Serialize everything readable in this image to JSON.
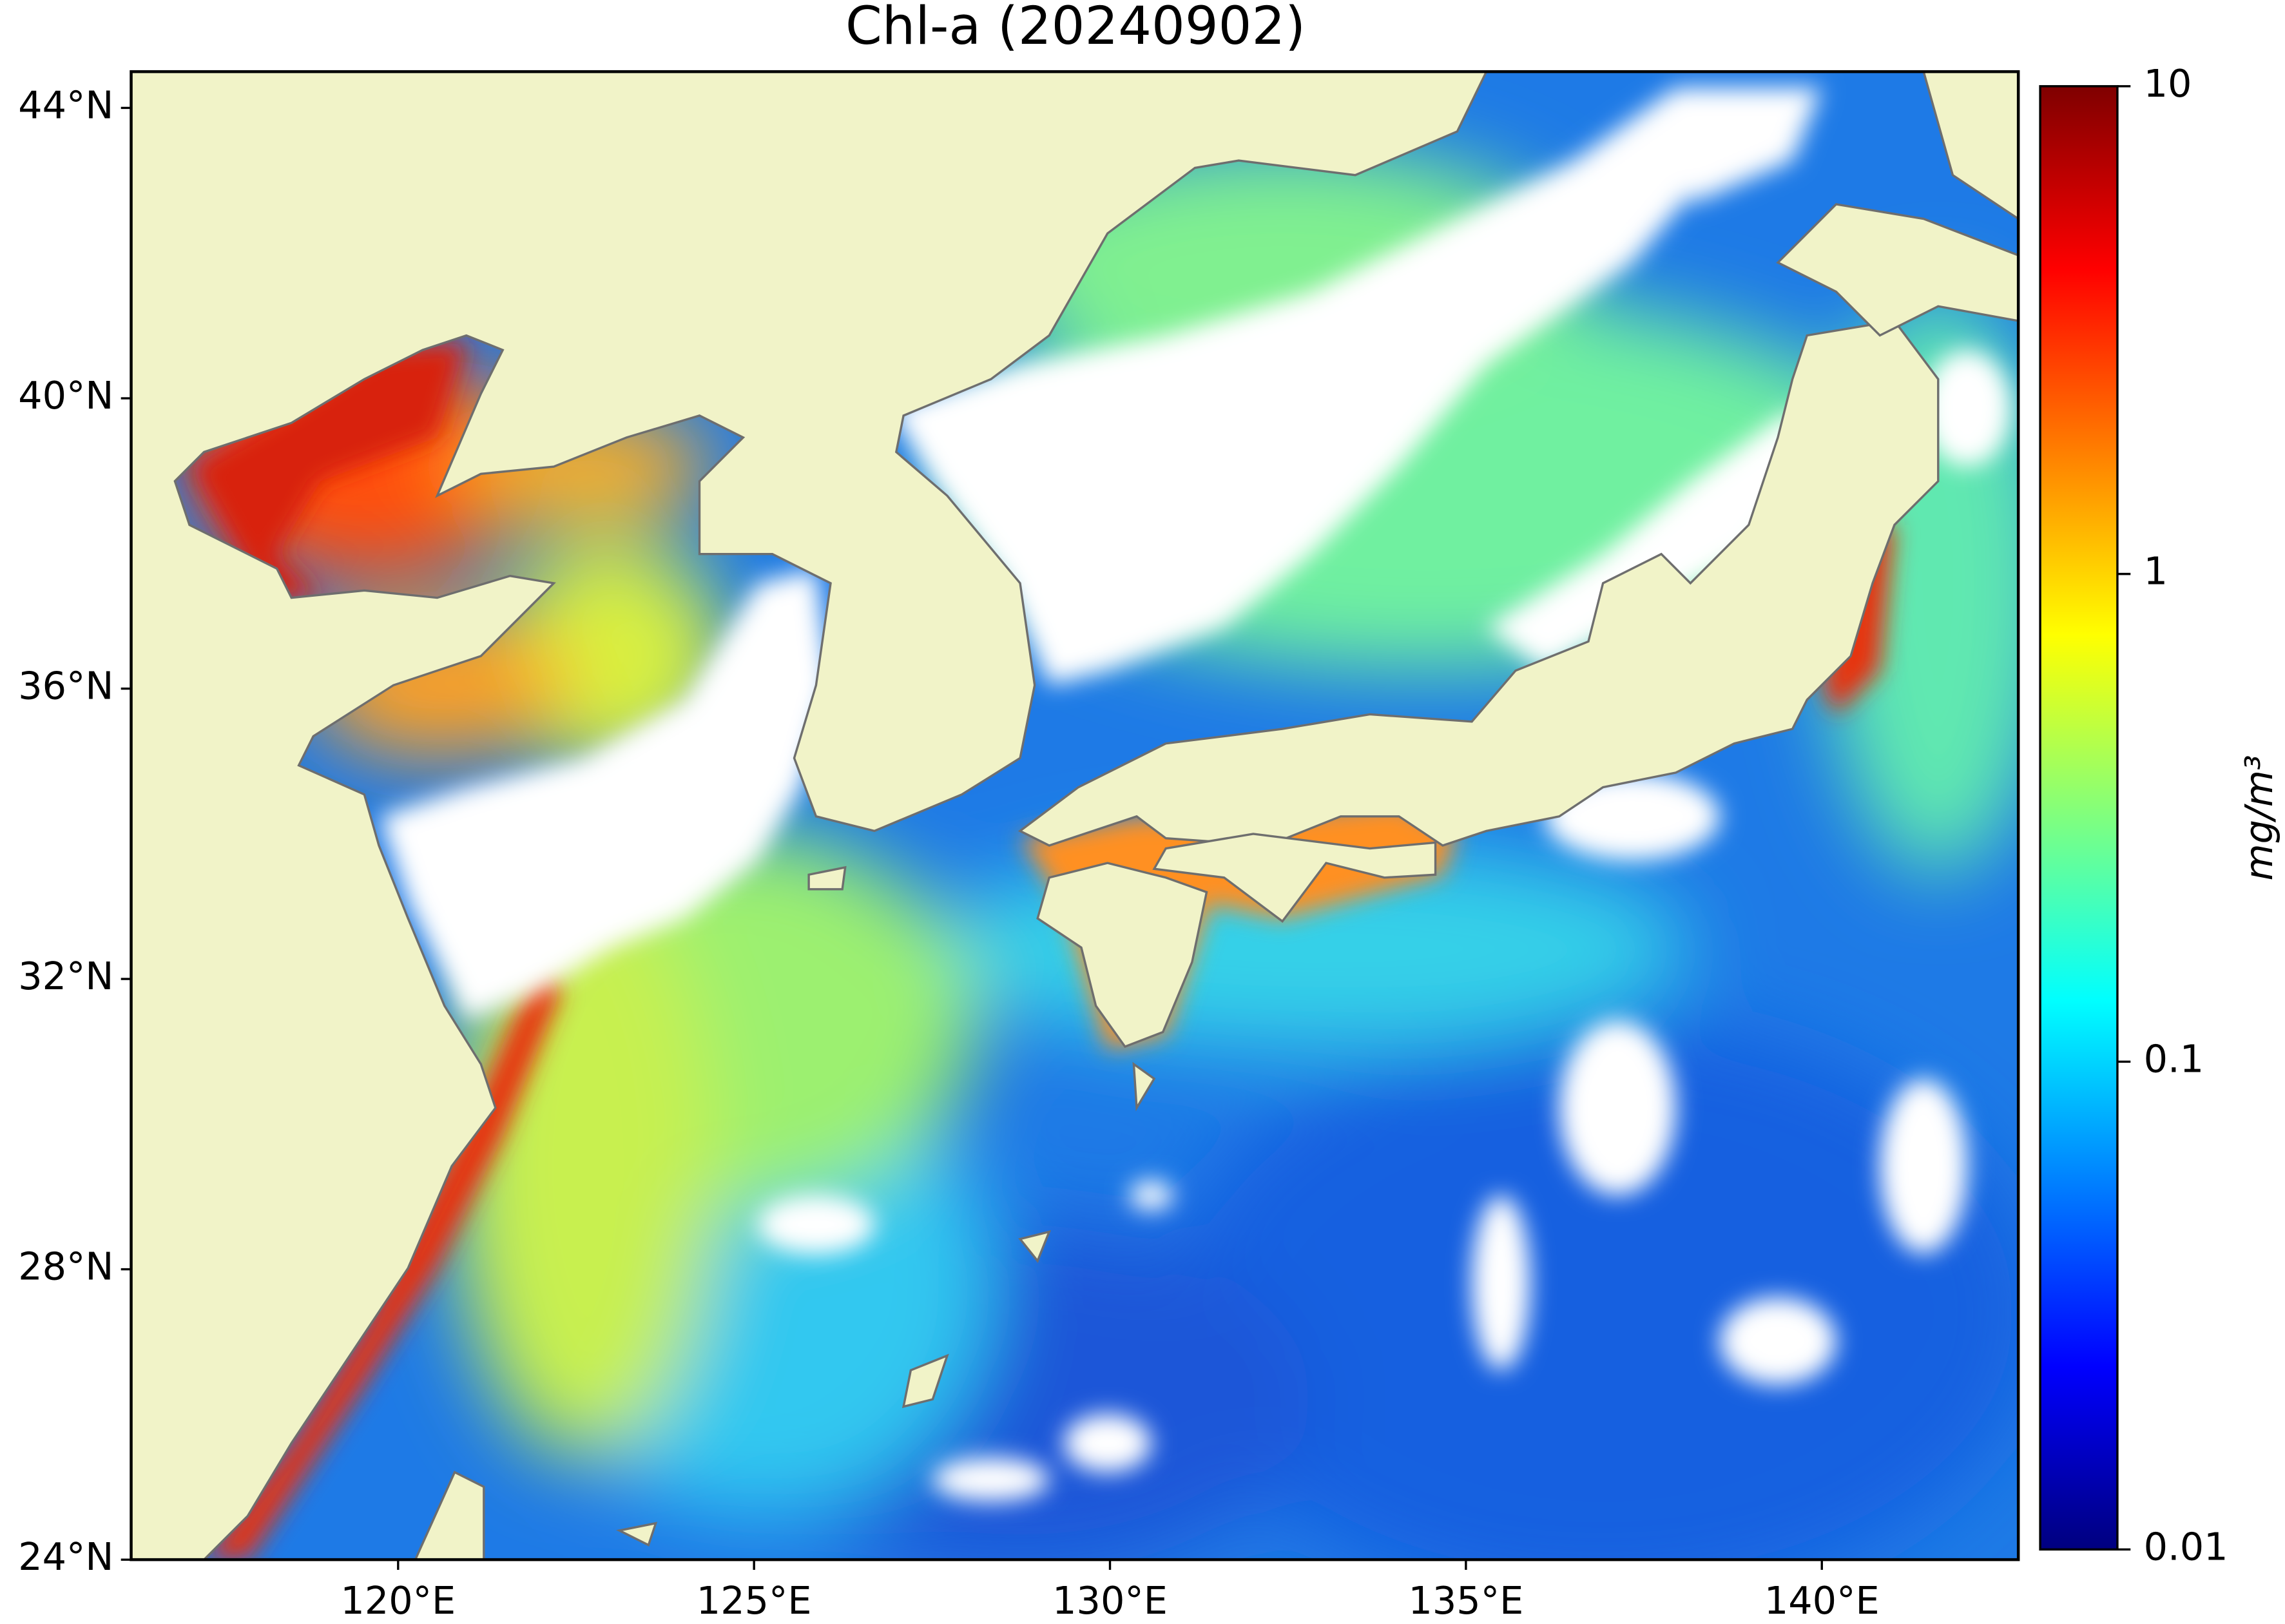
{
  "chart_data": {
    "type": "map",
    "title": "Chl-a (20240902)",
    "xlim": [
      116.25,
      142.76
    ],
    "ylim": [
      24,
      44.5
    ],
    "xticks": [
      {
        "value": 120,
        "label": "120°E"
      },
      {
        "value": 125,
        "label": "125°E"
      },
      {
        "value": 130,
        "label": "130°E"
      },
      {
        "value": 135,
        "label": "135°E"
      },
      {
        "value": 140,
        "label": "140°E"
      }
    ],
    "yticks": [
      {
        "value": 24,
        "label": "24°N"
      },
      {
        "value": 28,
        "label": "28°N"
      },
      {
        "value": 32,
        "label": "32°N"
      },
      {
        "value": 36,
        "label": "36°N"
      },
      {
        "value": 40,
        "label": "40°N"
      },
      {
        "value": 44,
        "label": "44°N"
      }
    ],
    "colorbar": {
      "label": "mg/m³",
      "scale": "log",
      "lim": [
        0.01,
        10
      ],
      "ticks": [
        0.01,
        0.1,
        1,
        10
      ],
      "colormap": "jet"
    }
  }
}
